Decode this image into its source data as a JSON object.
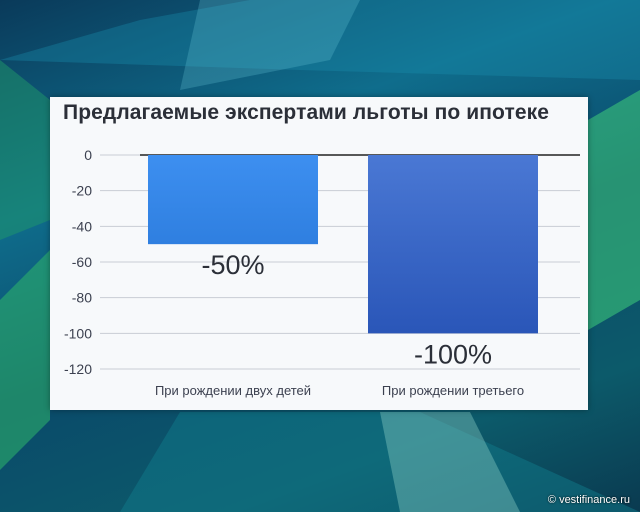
{
  "chart_data": {
    "type": "bar",
    "title": "Предлагаемые экспертами льготы по ипотеке",
    "categories": [
      "При рождении двух детей",
      "При рождении третьего"
    ],
    "values": [
      -50,
      -100
    ],
    "data_labels": [
      "-50%",
      "-100%"
    ],
    "ylim": [
      -120,
      0
    ],
    "yticks": [
      "0",
      "-20",
      "-40",
      "-60",
      "-80",
      "-100",
      "-120"
    ],
    "ytick_values": [
      0,
      -20,
      -40,
      -60,
      -80,
      -100,
      -120
    ],
    "grid": true,
    "colors": [
      "#2f7fe0",
      "#2a56b8"
    ]
  },
  "watermark": "© vestifinance.ru"
}
